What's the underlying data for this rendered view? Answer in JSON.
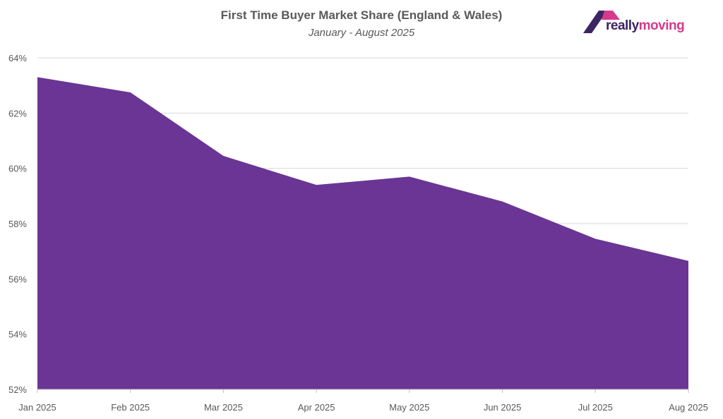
{
  "brand": {
    "logo_text_part1": "really",
    "logo_text_part2": "moving",
    "colors": {
      "dark": "#3d2462",
      "pink": "#d63a8c"
    }
  },
  "chart_data": {
    "type": "area",
    "title": "First Time Buyer Market Share (England & Wales)",
    "subtitle": "January - August 2025",
    "categories": [
      "Jan 2025",
      "Feb 2025",
      "Mar 2025",
      "Apr 2025",
      "May 2025",
      "Jun 2025",
      "Jul 2025",
      "Aug 2025"
    ],
    "series": [
      {
        "name": "First Time Buyer Market Share",
        "values": [
          63.3,
          62.75,
          60.45,
          59.4,
          59.7,
          58.8,
          57.45,
          56.65
        ],
        "color": "#6a3594"
      }
    ],
    "ylim": [
      52,
      64
    ],
    "yticks": [
      52,
      54,
      56,
      58,
      60,
      62,
      64
    ],
    "ytick_suffix": "%",
    "xlabel": "",
    "ylabel": "",
    "grid": true,
    "legend": "none"
  }
}
